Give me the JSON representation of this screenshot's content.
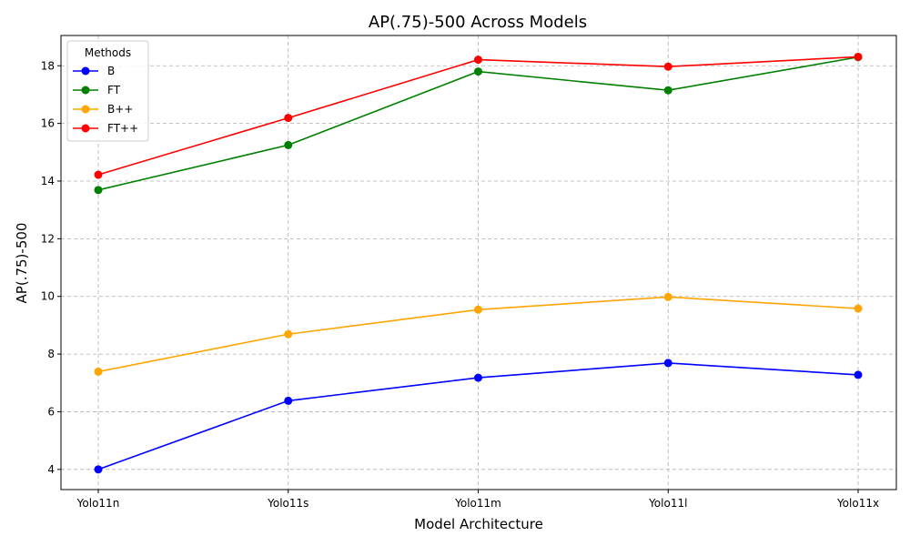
{
  "chart_data": {
    "type": "line",
    "title": "AP(.75)-500 Across Models",
    "xlabel": "Model Architecture",
    "ylabel": "AP(.75)-500",
    "categories": [
      "Yolo11n",
      "Yolo11s",
      "Yolo11m",
      "Yolo11l",
      "Yolo11x"
    ],
    "ylim": [
      3.3,
      19.05
    ],
    "yticks": [
      4,
      6,
      8,
      10,
      12,
      14,
      16,
      18
    ],
    "grid": true,
    "legend": {
      "title": "Methods",
      "placement": "top-left"
    },
    "series": [
      {
        "name": "B",
        "color": "#0000ff",
        "values": [
          4.0,
          6.38,
          7.18,
          7.69,
          7.28
        ]
      },
      {
        "name": "FT",
        "color": "#008000",
        "values": [
          13.69,
          15.25,
          17.8,
          17.15,
          18.3
        ]
      },
      {
        "name": "B++",
        "color": "#ffa500",
        "values": [
          7.39,
          8.69,
          9.54,
          9.98,
          9.58
        ]
      },
      {
        "name": "FT++",
        "color": "#ff0000",
        "values": [
          14.22,
          16.19,
          18.21,
          17.97,
          18.31
        ]
      }
    ]
  }
}
